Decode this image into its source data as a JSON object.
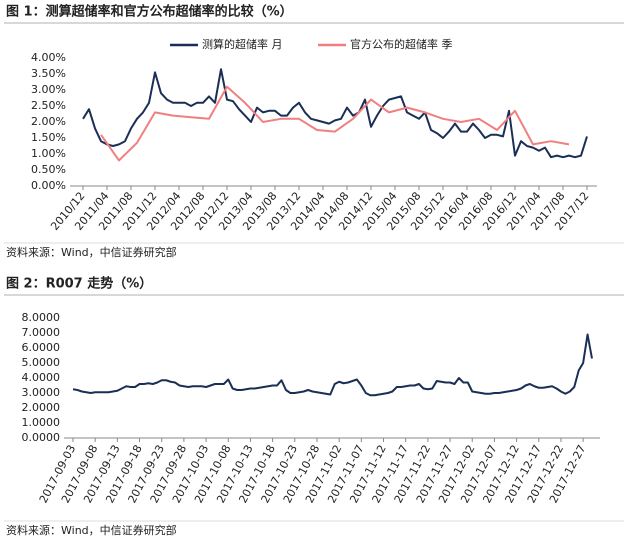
{
  "chart_data": [
    {
      "type": "line",
      "title": "图 1：测算超储率和官方公布超储率的比较（%）",
      "source": "资料来源：Wind，中信证券研究部",
      "x": [
        "2010/12",
        "2011/01",
        "2011/02",
        "2011/03",
        "2011/04",
        "2011/05",
        "2011/06",
        "2011/07",
        "2011/08",
        "2011/09",
        "2011/10",
        "2011/11",
        "2011/12",
        "2012/01",
        "2012/02",
        "2012/03",
        "2012/04",
        "2012/05",
        "2012/06",
        "2012/07",
        "2012/08",
        "2012/09",
        "2012/10",
        "2012/11",
        "2012/12",
        "2013/01",
        "2013/02",
        "2013/03",
        "2013/04",
        "2013/05",
        "2013/06",
        "2013/07",
        "2013/08",
        "2013/09",
        "2013/10",
        "2013/11",
        "2013/12",
        "2014/01",
        "2014/02",
        "2014/03",
        "2014/04",
        "2014/05",
        "2014/06",
        "2014/07",
        "2014/08",
        "2014/09",
        "2014/10",
        "2014/11",
        "2014/12",
        "2015/01",
        "2015/02",
        "2015/03",
        "2015/04",
        "2015/05",
        "2015/06",
        "2015/07",
        "2015/08",
        "2015/09",
        "2015/10",
        "2015/11",
        "2015/12",
        "2016/01",
        "2016/02",
        "2016/03",
        "2016/04",
        "2016/05",
        "2016/06",
        "2016/07",
        "2016/08",
        "2016/09",
        "2016/10",
        "2016/11",
        "2016/12",
        "2017/01",
        "2017/02",
        "2017/03",
        "2017/04",
        "2017/05",
        "2017/06",
        "2017/07",
        "2017/08",
        "2017/09",
        "2017/10",
        "2017/11",
        "2017/12"
      ],
      "xlim": [
        "2010/12",
        "2017/12"
      ],
      "xticks": [
        "2010/12",
        "2011/04",
        "2011/08",
        "2011/12",
        "2012/04",
        "2012/08",
        "2012/12",
        "2013/04",
        "2013/08",
        "2013/12",
        "2014/04",
        "2014/08",
        "2014/12",
        "2015/04",
        "2015/08",
        "2015/12",
        "2016/04",
        "2016/08",
        "2016/12",
        "2017/04",
        "2017/08",
        "2017/12"
      ],
      "ylim": [
        0,
        4
      ],
      "yticks": [
        {
          "value": 0,
          "label": "0.00%"
        },
        {
          "value": 0.5,
          "label": "0.50%"
        },
        {
          "value": 1,
          "label": "1.00%"
        },
        {
          "value": 1.5,
          "label": "1.50%"
        },
        {
          "value": 2,
          "label": "2.00%"
        },
        {
          "value": 2.5,
          "label": "2.50%"
        },
        {
          "value": 3,
          "label": "3.00%"
        },
        {
          "value": 3.5,
          "label": "3.50%"
        },
        {
          "value": 4,
          "label": "4.00%"
        }
      ],
      "series": [
        {
          "name": "测算的超储率 月",
          "color": "#1b2f56",
          "values": [
            2.1,
            2.4,
            1.8,
            1.4,
            1.3,
            1.25,
            1.3,
            1.4,
            1.8,
            2.1,
            2.3,
            2.6,
            3.55,
            2.9,
            2.7,
            2.6,
            2.6,
            2.6,
            2.5,
            2.6,
            2.6,
            2.8,
            2.6,
            3.65,
            2.7,
            2.65,
            2.4,
            2.2,
            2.0,
            2.45,
            2.3,
            2.35,
            2.35,
            2.2,
            2.2,
            2.45,
            2.6,
            2.3,
            2.1,
            2.05,
            2.0,
            1.95,
            2.05,
            2.1,
            2.45,
            2.2,
            2.3,
            2.7,
            1.85,
            2.2,
            2.5,
            2.7,
            2.75,
            2.8,
            2.3,
            2.2,
            2.1,
            2.3,
            1.75,
            1.65,
            1.5,
            1.7,
            1.95,
            1.7,
            1.7,
            1.95,
            1.75,
            1.5,
            1.6,
            1.6,
            1.55,
            2.35,
            0.95,
            1.4,
            1.25,
            1.2,
            1.1,
            1.2,
            0.9,
            0.95,
            0.9,
            0.95,
            0.9,
            0.95,
            1.55
          ]
        },
        {
          "name": "官方公布的超储率 季",
          "color": "#f07f80",
          "x": [
            "2011/03",
            "2011/06",
            "2011/09",
            "2011/12",
            "2012/03",
            "2012/06",
            "2012/09",
            "2012/12",
            "2013/03",
            "2013/06",
            "2013/09",
            "2013/12",
            "2014/03",
            "2014/06",
            "2014/09",
            "2014/12",
            "2015/03",
            "2015/06",
            "2015/09",
            "2015/12",
            "2016/03",
            "2016/06",
            "2016/09",
            "2016/12",
            "2017/03",
            "2017/06",
            "2017/09"
          ],
          "values": [
            1.6,
            0.8,
            1.35,
            2.3,
            2.2,
            2.15,
            2.1,
            3.1,
            2.6,
            2.0,
            2.1,
            2.1,
            1.75,
            1.7,
            2.1,
            2.7,
            2.3,
            2.45,
            2.3,
            2.1,
            2.0,
            2.1,
            1.75,
            2.35,
            1.3,
            1.4,
            1.3
          ]
        }
      ]
    },
    {
      "type": "line",
      "title": "图 2：R007 走势（%）",
      "source": "资料来源：Wind，中信证券研究部",
      "color": "#1b2f56",
      "x": [
        "2017-09-03",
        "2017-09-04",
        "2017-09-05",
        "2017-09-06",
        "2017-09-07",
        "2017-09-08",
        "2017-09-09",
        "2017-09-10",
        "2017-09-11",
        "2017-09-12",
        "2017-09-13",
        "2017-09-14",
        "2017-09-15",
        "2017-09-16",
        "2017-09-17",
        "2017-09-18",
        "2017-09-19",
        "2017-09-20",
        "2017-09-21",
        "2017-09-22",
        "2017-09-23",
        "2017-09-24",
        "2017-09-25",
        "2017-09-26",
        "2017-09-27",
        "2017-09-28",
        "2017-09-29",
        "2017-09-30",
        "2017-10-01",
        "2017-10-02",
        "2017-10-03",
        "2017-10-04",
        "2017-10-05",
        "2017-10-06",
        "2017-10-07",
        "2017-10-08",
        "2017-10-09",
        "2017-10-10",
        "2017-10-11",
        "2017-10-12",
        "2017-10-13",
        "2017-10-14",
        "2017-10-15",
        "2017-10-16",
        "2017-10-17",
        "2017-10-18",
        "2017-10-19",
        "2017-10-20",
        "2017-10-21",
        "2017-10-22",
        "2017-10-23",
        "2017-10-24",
        "2017-10-25",
        "2017-10-26",
        "2017-10-27",
        "2017-10-28",
        "2017-10-29",
        "2017-10-30",
        "2017-10-31",
        "2017-11-01",
        "2017-11-02",
        "2017-11-03",
        "2017-11-04",
        "2017-11-05",
        "2017-11-06",
        "2017-11-07",
        "2017-11-08",
        "2017-11-09",
        "2017-11-10",
        "2017-11-11",
        "2017-11-12",
        "2017-11-13",
        "2017-11-14",
        "2017-11-15",
        "2017-11-16",
        "2017-11-17",
        "2017-11-18",
        "2017-11-19",
        "2017-11-20",
        "2017-11-21",
        "2017-11-22",
        "2017-11-23",
        "2017-11-24",
        "2017-11-25",
        "2017-11-26",
        "2017-11-27",
        "2017-11-28",
        "2017-11-29",
        "2017-11-30",
        "2017-12-01",
        "2017-12-02",
        "2017-12-03",
        "2017-12-04",
        "2017-12-05",
        "2017-12-06",
        "2017-12-07",
        "2017-12-08",
        "2017-12-09",
        "2017-12-10",
        "2017-12-11",
        "2017-12-12",
        "2017-12-13",
        "2017-12-14",
        "2017-12-15",
        "2017-12-16",
        "2017-12-17",
        "2017-12-18",
        "2017-12-19",
        "2017-12-20",
        "2017-12-21",
        "2017-12-22",
        "2017-12-23",
        "2017-12-24",
        "2017-12-25",
        "2017-12-26",
        "2017-12-27",
        "2017-12-28",
        "2017-12-29"
      ],
      "values": [
        3.25,
        3.2,
        3.1,
        3.05,
        3.0,
        3.05,
        3.05,
        3.05,
        3.05,
        3.1,
        3.15,
        3.3,
        3.45,
        3.4,
        3.4,
        3.6,
        3.6,
        3.65,
        3.6,
        3.7,
        3.85,
        3.85,
        3.75,
        3.7,
        3.5,
        3.45,
        3.4,
        3.45,
        3.45,
        3.45,
        3.4,
        3.5,
        3.6,
        3.6,
        3.6,
        3.9,
        3.3,
        3.2,
        3.2,
        3.25,
        3.3,
        3.3,
        3.35,
        3.4,
        3.45,
        3.5,
        3.5,
        3.85,
        3.2,
        3.0,
        3.0,
        3.05,
        3.1,
        3.2,
        3.1,
        3.05,
        3.0,
        2.95,
        2.9,
        3.6,
        3.75,
        3.65,
        3.7,
        3.8,
        3.9,
        3.5,
        3.0,
        2.85,
        2.85,
        2.9,
        2.95,
        3.0,
        3.1,
        3.4,
        3.4,
        3.45,
        3.5,
        3.5,
        3.6,
        3.3,
        3.25,
        3.3,
        3.8,
        3.75,
        3.7,
        3.7,
        3.6,
        4.0,
        3.7,
        3.7,
        3.1,
        3.05,
        3.0,
        2.95,
        2.95,
        3.0,
        3.0,
        3.05,
        3.1,
        3.15,
        3.2,
        3.3,
        3.5,
        3.6,
        3.45,
        3.35,
        3.35,
        3.4,
        3.45,
        3.3,
        3.1,
        2.95,
        3.1,
        3.4,
        4.5,
        5.0,
        6.9,
        5.3
      ],
      "xlim": [
        "2017-09-03",
        "2017-12-29"
      ],
      "xticks": [
        "2017-09-03",
        "2017-09-08",
        "2017-09-13",
        "2017-09-18",
        "2017-09-23",
        "2017-09-28",
        "2017-10-03",
        "2017-10-08",
        "2017-10-13",
        "2017-10-18",
        "2017-10-23",
        "2017-10-28",
        "2017-11-02",
        "2017-11-07",
        "2017-11-12",
        "2017-11-17",
        "2017-11-22",
        "2017-11-27",
        "2017-12-02",
        "2017-12-07",
        "2017-12-12",
        "2017-12-17",
        "2017-12-22",
        "2017-12-27"
      ],
      "ylim": [
        0,
        8
      ],
      "yticks": [
        {
          "value": 0,
          "label": "0.0000"
        },
        {
          "value": 1,
          "label": "1.0000"
        },
        {
          "value": 2,
          "label": "2.0000"
        },
        {
          "value": 3,
          "label": "3.0000"
        },
        {
          "value": 4,
          "label": "4.0000"
        },
        {
          "value": 5,
          "label": "5.0000"
        },
        {
          "value": 6,
          "label": "6.0000"
        },
        {
          "value": 7,
          "label": "7.0000"
        },
        {
          "value": 8,
          "label": "8.0000"
        }
      ]
    }
  ]
}
